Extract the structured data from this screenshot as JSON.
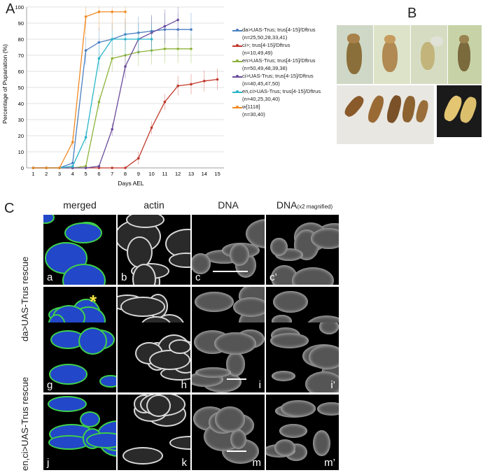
{
  "panel_labels": {
    "a": "A",
    "b": "B",
    "c": "C"
  },
  "chart_data": {
    "type": "line",
    "ylabel": "Percentage of Pupariation (%)",
    "xlabel": "Days AEL",
    "x": [
      1,
      2,
      3,
      4,
      5,
      6,
      7,
      8,
      9,
      10,
      11,
      12,
      13,
      14,
      15
    ],
    "ylim": [
      0,
      100
    ],
    "yticks": [
      0,
      10,
      20,
      30,
      40,
      50,
      60,
      70,
      80,
      90,
      100
    ],
    "grid": true,
    "legend_position": "right",
    "series": [
      {
        "name": "da>UAS-Trus; trus[4-15]/Dftrus (n=25,50,28,33,41)",
        "color": "#4a7fc1",
        "x": [
          1,
          2,
          3,
          4,
          5,
          6,
          7,
          8,
          9,
          10,
          11,
          12,
          13
        ],
        "values": [
          0,
          0,
          0,
          3,
          73,
          78,
          80,
          83,
          84,
          85,
          86,
          86,
          86
        ]
      },
      {
        "name": "ci>; trus[4-15]/Dftrus (n=10,49,49)",
        "color": "#c0392b",
        "x": [
          1,
          2,
          3,
          4,
          5,
          6,
          7,
          8,
          9,
          10,
          11,
          12,
          13,
          14,
          15
        ],
        "values": [
          0,
          0,
          0,
          0,
          0,
          0,
          0,
          0,
          6,
          25,
          41,
          51,
          52,
          54,
          55
        ]
      },
      {
        "name": "en>UAS-Trus; trus[4-15]/Dftrus (n=50,49,48,39,38)",
        "color": "#8db33a",
        "x": [
          1,
          2,
          3,
          4,
          5,
          6,
          7,
          8,
          9,
          10,
          11,
          12,
          13
        ],
        "values": [
          0,
          0,
          0,
          0,
          1,
          41,
          68,
          70,
          72,
          73,
          74,
          74,
          74
        ]
      },
      {
        "name": "ci>UAS-Trus; trus[4-15]/Dftrus (n=40,45,47,50)",
        "color": "#6a4c9c",
        "x": [
          1,
          2,
          3,
          4,
          5,
          6,
          7,
          8,
          9,
          10,
          11,
          12
        ],
        "values": [
          0,
          0,
          0,
          0,
          0,
          1,
          24,
          63,
          80,
          84,
          88,
          92
        ]
      },
      {
        "name": "en,ci>UAS-Trus; trus[4-15]/Dftrus (n=40,25,30,40)",
        "color": "#2bb5c9",
        "x": [
          1,
          2,
          3,
          4,
          5,
          6,
          7,
          8,
          9,
          10
        ],
        "values": [
          0,
          0,
          0,
          1,
          19,
          68,
          80,
          80,
          80,
          80
        ]
      },
      {
        "name": "w[1118] (n=30,40)",
        "color": "#f08a24",
        "x": [
          1,
          2,
          3,
          4,
          5,
          6,
          7,
          8
        ],
        "values": [
          0,
          0,
          0,
          16,
          94,
          97,
          97,
          97
        ]
      }
    ]
  },
  "panel_c": {
    "col_headers": [
      "merged",
      "actin",
      "DNA",
      "DNA"
    ],
    "col_header_sub": "(x2 magnified)",
    "row_labels": [
      "da>UAS-Trus rescue",
      "en,ci>UAS-Trus rescue"
    ],
    "cells": [
      [
        "a",
        "b",
        "c",
        "c’"
      ],
      [
        "d",
        "e",
        "f",
        "f’"
      ],
      [
        "g",
        "h",
        "i",
        "i’"
      ],
      [
        "j",
        "k",
        "m",
        "m’"
      ]
    ],
    "asterisk": "*"
  },
  "colors": {
    "merged_green": "#3fd04a",
    "merged_blue": "#2247c8",
    "asterisk": "#f5e642"
  }
}
